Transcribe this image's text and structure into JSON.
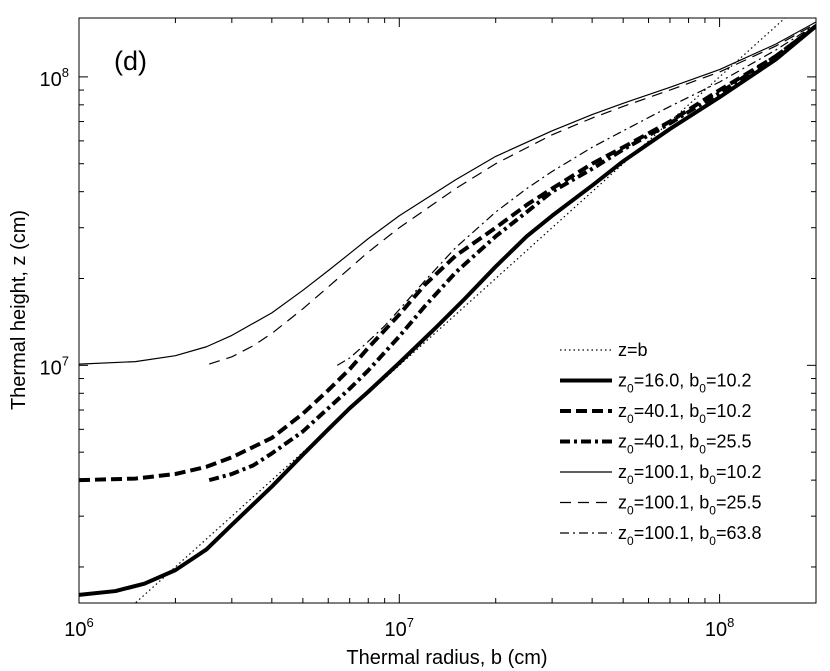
{
  "chart_data": {
    "type": "line",
    "panel_label": "(d)",
    "xlabel": "Thermal radius, b (cm)",
    "ylabel": "Thermal height, z (cm)",
    "xscale": "log",
    "yscale": "log",
    "xlim": [
      1000000,
      200000000
    ],
    "ylim": [
      1500000,
      160000000
    ],
    "x_ticks": [
      {
        "value": 1000000,
        "base": "10",
        "exp": "6"
      },
      {
        "value": 10000000,
        "base": "10",
        "exp": "7"
      },
      {
        "value": 100000000,
        "base": "10",
        "exp": "8"
      }
    ],
    "y_ticks": [
      {
        "value": 10000000,
        "base": "10",
        "exp": "7"
      },
      {
        "value": 100000000,
        "base": "10",
        "exp": "8"
      }
    ],
    "legend_position": "bottom-right",
    "series": [
      {
        "name": "z=b",
        "legend": {
          "pre": "z=b",
          "sub1": "",
          "mid": "",
          "sub2": "",
          "post": ""
        },
        "style": "dotted",
        "width": 1.2,
        "points": [
          [
            1400000,
            1400000
          ],
          [
            200000000,
            200000000
          ]
        ]
      },
      {
        "name": "z0=16.0, b0=10.2",
        "legend": {
          "pre": "z",
          "sub1": "0",
          "mid": "=16.0, b",
          "sub2": "0",
          "post": "=10.2"
        },
        "style": "solid",
        "width": 4,
        "points": [
          [
            1000000,
            1600000
          ],
          [
            1300000,
            1650000
          ],
          [
            1600000,
            1750000
          ],
          [
            2000000,
            1950000
          ],
          [
            2500000,
            2300000
          ],
          [
            3000000,
            2800000
          ],
          [
            4000000,
            3800000
          ],
          [
            5000000,
            4900000
          ],
          [
            6000000,
            6000000
          ],
          [
            7000000,
            7100000
          ],
          [
            8000000,
            8100000
          ],
          [
            10000000,
            10200000
          ],
          [
            13000000,
            13500000
          ],
          [
            16000000,
            17000000
          ],
          [
            20000000,
            22000000
          ],
          [
            25000000,
            28000000
          ],
          [
            30000000,
            33000000
          ],
          [
            40000000,
            42000000
          ],
          [
            50000000,
            51000000
          ],
          [
            70000000,
            66000000
          ],
          [
            100000000,
            85000000
          ],
          [
            150000000,
            115000000
          ],
          [
            200000000,
            150000000
          ]
        ]
      },
      {
        "name": "z0=40.1, b0=10.2",
        "legend": {
          "pre": "z",
          "sub1": "0",
          "mid": "=40.1, b",
          "sub2": "0",
          "post": "=10.2"
        },
        "style": "dash-thick",
        "width": 4,
        "points": [
          [
            1000000,
            4000000
          ],
          [
            1500000,
            4050000
          ],
          [
            2000000,
            4200000
          ],
          [
            2500000,
            4450000
          ],
          [
            3000000,
            4800000
          ],
          [
            4000000,
            5600000
          ],
          [
            5000000,
            6800000
          ],
          [
            6000000,
            8200000
          ],
          [
            7000000,
            9700000
          ],
          [
            8000000,
            11500000
          ],
          [
            10000000,
            15000000
          ],
          [
            12000000,
            19000000
          ],
          [
            15000000,
            24000000
          ],
          [
            20000000,
            30000000
          ],
          [
            25000000,
            36000000
          ],
          [
            30000000,
            41000000
          ],
          [
            40000000,
            50000000
          ],
          [
            50000000,
            57000000
          ],
          [
            70000000,
            70000000
          ],
          [
            100000000,
            90000000
          ],
          [
            150000000,
            118000000
          ],
          [
            200000000,
            150000000
          ]
        ]
      },
      {
        "name": "z0=40.1, b0=25.5",
        "legend": {
          "pre": "z",
          "sub1": "0",
          "mid": "=40.1, b",
          "sub2": "0",
          "post": "=25.5"
        },
        "style": "dashdot-thick",
        "width": 4,
        "points": [
          [
            2550000,
            4000000
          ],
          [
            3000000,
            4200000
          ],
          [
            3500000,
            4500000
          ],
          [
            4000000,
            4950000
          ],
          [
            5000000,
            5900000
          ],
          [
            6000000,
            7100000
          ],
          [
            7000000,
            8300000
          ],
          [
            8000000,
            9600000
          ],
          [
            10000000,
            12600000
          ],
          [
            12000000,
            16000000
          ],
          [
            15000000,
            21000000
          ],
          [
            20000000,
            28000000
          ],
          [
            25000000,
            34000000
          ],
          [
            30000000,
            40000000
          ],
          [
            40000000,
            48000000
          ],
          [
            50000000,
            56000000
          ],
          [
            70000000,
            69000000
          ],
          [
            100000000,
            88000000
          ],
          [
            150000000,
            118000000
          ],
          [
            200000000,
            150000000
          ]
        ]
      },
      {
        "name": "z0=100.1, b0=10.2",
        "legend": {
          "pre": "z",
          "sub1": "0",
          "mid": "=100.1, b",
          "sub2": "0",
          "post": "=10.2"
        },
        "style": "solid",
        "width": 1.2,
        "points": [
          [
            1000000,
            10100000
          ],
          [
            1500000,
            10300000
          ],
          [
            2000000,
            10800000
          ],
          [
            2500000,
            11600000
          ],
          [
            3000000,
            12700000
          ],
          [
            4000000,
            15200000
          ],
          [
            5000000,
            18200000
          ],
          [
            6000000,
            21300000
          ],
          [
            7000000,
            24400000
          ],
          [
            8000000,
            27500000
          ],
          [
            10000000,
            33000000
          ],
          [
            15000000,
            44000000
          ],
          [
            20000000,
            53000000
          ],
          [
            30000000,
            65000000
          ],
          [
            40000000,
            74000000
          ],
          [
            50000000,
            81000000
          ],
          [
            70000000,
            92000000
          ],
          [
            100000000,
            106000000
          ],
          [
            150000000,
            130000000
          ],
          [
            200000000,
            155000000
          ]
        ]
      },
      {
        "name": "z0=100.1, b0=25.5",
        "legend": {
          "pre": "z",
          "sub1": "0",
          "mid": "=100.1, b",
          "sub2": "0",
          "post": "=25.5"
        },
        "style": "dashed",
        "width": 1.2,
        "points": [
          [
            2550000,
            10100000
          ],
          [
            3000000,
            10700000
          ],
          [
            3500000,
            11700000
          ],
          [
            4000000,
            12900000
          ],
          [
            5000000,
            15700000
          ],
          [
            6000000,
            18700000
          ],
          [
            7000000,
            21700000
          ],
          [
            8000000,
            24700000
          ],
          [
            10000000,
            30000000
          ],
          [
            15000000,
            41000000
          ],
          [
            20000000,
            50000000
          ],
          [
            30000000,
            63000000
          ],
          [
            40000000,
            72000000
          ],
          [
            50000000,
            79000000
          ],
          [
            70000000,
            90000000
          ],
          [
            100000000,
            104000000
          ],
          [
            150000000,
            128000000
          ],
          [
            200000000,
            153000000
          ]
        ]
      },
      {
        "name": "z0=100.1, b0=63.8",
        "legend": {
          "pre": "z",
          "sub1": "0",
          "mid": "=100.1, b",
          "sub2": "0",
          "post": "=63.8"
        },
        "style": "dashdot",
        "width": 1.2,
        "points": [
          [
            6400000,
            10000000
          ],
          [
            7000000,
            10600000
          ],
          [
            8000000,
            12100000
          ],
          [
            9000000,
            13700000
          ],
          [
            10000000,
            15600000
          ],
          [
            12000000,
            19600000
          ],
          [
            15000000,
            25600000
          ],
          [
            20000000,
            34000000
          ],
          [
            25000000,
            41000000
          ],
          [
            30000000,
            47000000
          ],
          [
            40000000,
            57000000
          ],
          [
            50000000,
            65000000
          ],
          [
            70000000,
            79000000
          ],
          [
            100000000,
            96000000
          ],
          [
            150000000,
            124000000
          ],
          [
            200000000,
            152000000
          ]
        ]
      }
    ]
  }
}
